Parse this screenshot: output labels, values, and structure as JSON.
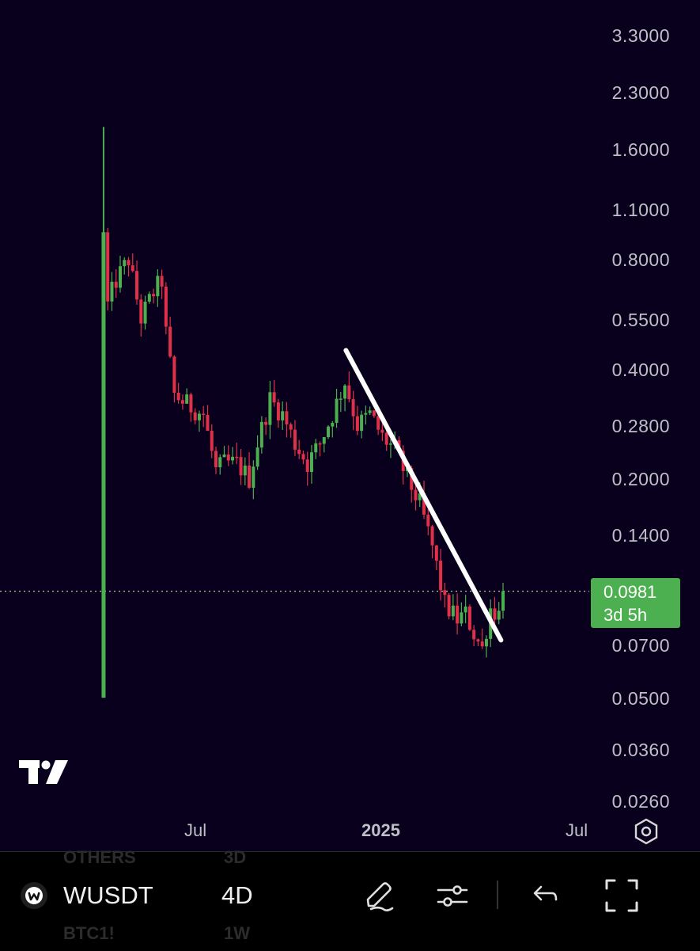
{
  "chart_data": {
    "type": "candlestick",
    "symbol": "WUSDT",
    "interval": "4D",
    "y_scale": "log",
    "y_ticks": [
      "3.3000",
      "2.3000",
      "1.6000",
      "1.1000",
      "0.8000",
      "0.5500",
      "0.4000",
      "0.2800",
      "0.2000",
      "0.1400",
      "0.0981",
      "0.0700",
      "0.0500",
      "0.0360",
      "0.0260"
    ],
    "x_ticks": [
      "Jul",
      "2025",
      "Jul"
    ],
    "current_price": "0.0981",
    "countdown": "3d 5h",
    "trendline": {
      "from": {
        "date": "2024-11-22",
        "price": 0.45
      },
      "to": {
        "date": "2025-04-20",
        "price": 0.072
      }
    },
    "colors": {
      "up": "#4caf50",
      "down": "#e0304a",
      "background": "#08001c",
      "trendline": "#ffffff"
    },
    "price_path": [
      {
        "date": "2024-04-03",
        "price": 0.95
      },
      {
        "date": "2024-04-07",
        "price": 0.6
      },
      {
        "date": "2024-04-15",
        "price": 0.7
      },
      {
        "date": "2024-04-27",
        "price": 0.8
      },
      {
        "date": "2024-05-09",
        "price": 0.55
      },
      {
        "date": "2024-05-21",
        "price": 0.65
      },
      {
        "date": "2024-05-29",
        "price": 0.7
      },
      {
        "date": "2024-06-02",
        "price": 0.5
      },
      {
        "date": "2024-06-10",
        "price": 0.34
      },
      {
        "date": "2024-06-22",
        "price": 0.32
      },
      {
        "date": "2024-07-08",
        "price": 0.3
      },
      {
        "date": "2024-07-20",
        "price": 0.21
      },
      {
        "date": "2024-07-28",
        "price": 0.22
      },
      {
        "date": "2024-08-09",
        "price": 0.22
      },
      {
        "date": "2024-08-21",
        "price": 0.2
      },
      {
        "date": "2024-08-29",
        "price": 0.25
      },
      {
        "date": "2024-09-10",
        "price": 0.33
      },
      {
        "date": "2024-09-22",
        "price": 0.3
      },
      {
        "date": "2024-10-04",
        "price": 0.25
      },
      {
        "date": "2024-10-16",
        "price": 0.22
      },
      {
        "date": "2024-10-28",
        "price": 0.25
      },
      {
        "date": "2024-11-09",
        "price": 0.3
      },
      {
        "date": "2024-11-21",
        "price": 0.37
      },
      {
        "date": "2024-12-03",
        "price": 0.28
      },
      {
        "date": "2024-12-15",
        "price": 0.3
      },
      {
        "date": "2024-12-27",
        "price": 0.26
      },
      {
        "date": "2025-01-08",
        "price": 0.24
      },
      {
        "date": "2025-01-20",
        "price": 0.2
      },
      {
        "date": "2025-02-01",
        "price": 0.17
      },
      {
        "date": "2025-02-13",
        "price": 0.13
      },
      {
        "date": "2025-02-25",
        "price": 0.09
      },
      {
        "date": "2025-03-09",
        "price": 0.082
      },
      {
        "date": "2025-03-17",
        "price": 0.085
      },
      {
        "date": "2025-03-25",
        "price": 0.075
      },
      {
        "date": "2025-04-02",
        "price": 0.068
      },
      {
        "date": "2025-04-10",
        "price": 0.088
      },
      {
        "date": "2025-04-18",
        "price": 0.085
      },
      {
        "date": "2025-04-22",
        "price": 0.0981
      }
    ]
  },
  "toolbar": {
    "symbol": "WUSDT",
    "interval": "4D",
    "ghost_rows": [
      {
        "symbol": "OTHERS",
        "interval": "3D"
      },
      {
        "symbol": "BTC1!",
        "interval": "1W"
      }
    ]
  }
}
